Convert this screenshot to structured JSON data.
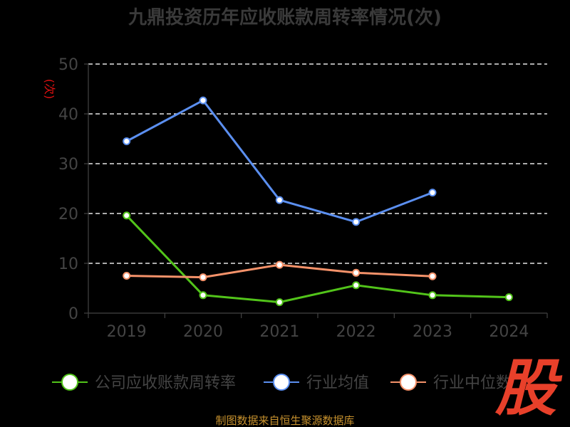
{
  "chart_data": {
    "type": "line",
    "title": "九鼎投资历年应收账款周转率情况(次)",
    "ylabel": "(次)",
    "xlabel": "",
    "ylim": [
      0,
      50
    ],
    "yticks": [
      0,
      10,
      20,
      30,
      40,
      50
    ],
    "categories": [
      "2019",
      "2020",
      "2021",
      "2022",
      "2023",
      "2024"
    ],
    "grid": true,
    "legend_position": "bottom",
    "series": [
      {
        "name": "公司应收账款周转率",
        "color": "#52c41a",
        "values": [
          19.6,
          3.6,
          2.2,
          5.6,
          3.6,
          3.2
        ]
      },
      {
        "name": "行业均值",
        "color": "#5b8ff0",
        "values": [
          34.5,
          42.7,
          22.7,
          18.3,
          24.2,
          null
        ]
      },
      {
        "name": "行业中位数",
        "color": "#f5926a",
        "values": [
          7.5,
          7.2,
          9.7,
          8.1,
          7.4,
          null
        ]
      }
    ]
  },
  "source": "制图数据来自恒生聚源数据库",
  "logo_text": "股"
}
